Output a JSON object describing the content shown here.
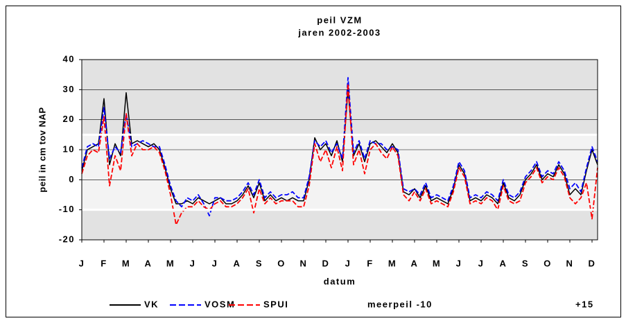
{
  "chart_data": {
    "type": "line",
    "title": "peil VZM",
    "subtitle": "jaren 2002-2003",
    "ylabel": "peil in cm tov NAP",
    "xlabel": "datum",
    "xlim": [
      0,
      23.25
    ],
    "xticks": [
      {
        "value": 0,
        "label": "J"
      },
      {
        "value": 1,
        "label": "F"
      },
      {
        "value": 2,
        "label": "M"
      },
      {
        "value": 3,
        "label": "A"
      },
      {
        "value": 4,
        "label": "M"
      },
      {
        "value": 5,
        "label": "J"
      },
      {
        "value": 6,
        "label": "J"
      },
      {
        "value": 7,
        "label": "A"
      },
      {
        "value": 8,
        "label": "S"
      },
      {
        "value": 9,
        "label": "O"
      },
      {
        "value": 10,
        "label": "N"
      },
      {
        "value": 11,
        "label": "D"
      },
      {
        "value": 12,
        "label": "J"
      },
      {
        "value": 13,
        "label": "F"
      },
      {
        "value": 14,
        "label": "M"
      },
      {
        "value": 15,
        "label": "A"
      },
      {
        "value": 16,
        "label": "M"
      },
      {
        "value": 17,
        "label": "J"
      },
      {
        "value": 18,
        "label": "J"
      },
      {
        "value": 19,
        "label": "A"
      },
      {
        "value": 20,
        "label": "S"
      },
      {
        "value": 21,
        "label": "O"
      },
      {
        "value": 22,
        "label": "N"
      },
      {
        "value": 23,
        "label": "D"
      }
    ],
    "ylim": [
      -20,
      40
    ],
    "yticks": [
      -20,
      -10,
      0,
      10,
      20,
      30,
      40
    ],
    "grid": true,
    "x": [
      0,
      0.25,
      0.5,
      0.75,
      1,
      1.25,
      1.5,
      1.75,
      2,
      2.25,
      2.5,
      2.75,
      3,
      3.25,
      3.5,
      3.75,
      4,
      4.25,
      4.5,
      4.75,
      5,
      5.25,
      5.5,
      5.75,
      6,
      6.25,
      6.5,
      6.75,
      7,
      7.25,
      7.5,
      7.75,
      8,
      8.25,
      8.5,
      8.75,
      9,
      9.25,
      9.5,
      9.75,
      10,
      10.25,
      10.5,
      10.75,
      11,
      11.25,
      11.5,
      11.75,
      12,
      12.25,
      12.5,
      12.75,
      13,
      13.25,
      13.5,
      13.75,
      14,
      14.25,
      14.5,
      14.75,
      15,
      15.25,
      15.5,
      15.75,
      16,
      16.25,
      16.5,
      16.75,
      17,
      17.25,
      17.5,
      17.75,
      18,
      18.25,
      18.5,
      18.75,
      19,
      19.25,
      19.5,
      19.75,
      20,
      20.25,
      20.5,
      20.75,
      21,
      21.25,
      21.5,
      21.75,
      22,
      22.25,
      22.5,
      22.75,
      23,
      23.25
    ],
    "series": [
      {
        "name": "VK",
        "color": "#000000",
        "dashed": false,
        "values": [
          3,
          10,
          11,
          12,
          27,
          5,
          12,
          8,
          29,
          12,
          13,
          12,
          11,
          12,
          10,
          4,
          -3,
          -8,
          -8,
          -7,
          -8,
          -6,
          -7,
          -8,
          -7,
          -6,
          -8,
          -8,
          -7,
          -5,
          -2,
          -6,
          -1,
          -7,
          -5,
          -7,
          -6,
          -7,
          -6,
          -7,
          -7,
          0,
          14,
          10,
          12,
          8,
          13,
          6,
          30,
          8,
          12,
          6,
          12,
          13,
          11,
          9,
          12,
          9,
          -4,
          -5,
          -3,
          -6,
          -2,
          -7,
          -6,
          -7,
          -8,
          -3,
          5,
          2,
          -7,
          -6,
          -7,
          -5,
          -6,
          -8,
          -1,
          -6,
          -7,
          -5,
          0,
          2,
          5,
          0,
          2,
          1,
          5,
          2,
          -5,
          -3,
          -5,
          3,
          10,
          5
        ]
      },
      {
        "name": "VOSM",
        "color": "#0000ff",
        "dashed": true,
        "values": [
          4,
          11,
          12,
          11,
          24,
          7,
          11,
          9,
          22,
          11,
          12,
          13,
          12,
          11,
          11,
          5,
          -2,
          -7,
          -9,
          -6,
          -7,
          -5,
          -8,
          -12,
          -6,
          -6,
          -7,
          -7,
          -6,
          -4,
          -1,
          -5,
          0,
          -6,
          -4,
          -6,
          -5,
          -5,
          -4,
          -6,
          -6,
          1,
          13,
          11,
          13,
          9,
          12,
          7,
          34,
          9,
          13,
          7,
          13,
          12,
          12,
          10,
          11,
          10,
          -3,
          -4,
          -3,
          -5,
          -1,
          -6,
          -5,
          -6,
          -7,
          -2,
          6,
          3,
          -6,
          -5,
          -6,
          -4,
          -5,
          -7,
          0,
          -5,
          -6,
          -4,
          1,
          3,
          6,
          1,
          3,
          2,
          6,
          3,
          -3,
          -1,
          -4,
          4,
          11,
          6
        ]
      },
      {
        "name": "SPUI",
        "color": "#ff0000",
        "dashed": true,
        "values": [
          2,
          8,
          10,
          9,
          21,
          -2,
          8,
          3,
          22,
          8,
          12,
          10,
          10,
          11,
          9,
          3,
          -5,
          -15,
          -11,
          -9,
          -9,
          -7,
          -9,
          -10,
          -8,
          -7,
          -9,
          -9,
          -8,
          -6,
          -3,
          -11,
          -3,
          -8,
          -6,
          -8,
          -7,
          -7,
          -7,
          -9,
          -9,
          -2,
          12,
          6,
          10,
          4,
          11,
          3,
          32,
          5,
          10,
          2,
          10,
          12,
          9,
          7,
          11,
          8,
          -5,
          -7,
          -4,
          -7,
          -3,
          -8,
          -7,
          -8,
          -9,
          -4,
          4,
          1,
          -8,
          -7,
          -8,
          -6,
          -7,
          -10,
          -2,
          -7,
          -8,
          -7,
          -1,
          1,
          4,
          -1,
          1,
          0,
          4,
          1,
          -6,
          -8,
          -6,
          -1,
          -13,
          4
        ]
      },
      {
        "name": "meerpeil -10",
        "color": "#ffffff",
        "dashed": false,
        "constant": -10
      },
      {
        "name": "+15",
        "color": "#ffffff",
        "dashed": false,
        "constant": 15
      }
    ]
  }
}
